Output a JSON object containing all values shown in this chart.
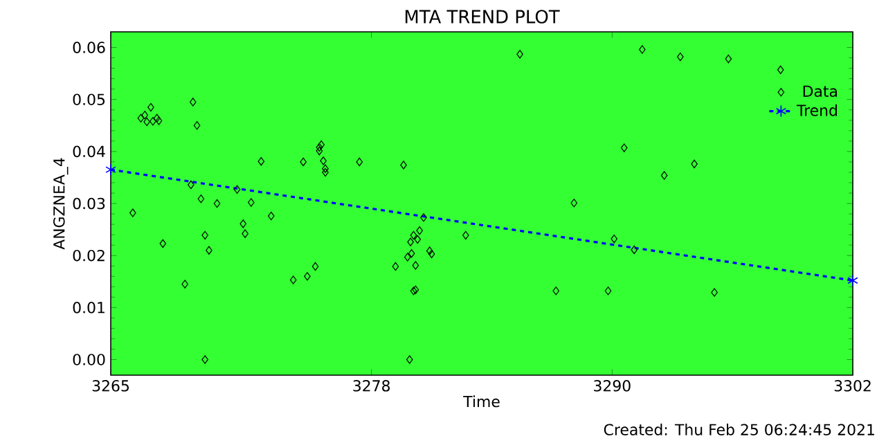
{
  "chart_data": {
    "type": "scatter",
    "title": "MTA TREND PLOT",
    "xlabel": "Time",
    "ylabel": "ANGZNEA_4",
    "annotations": [
      "Created: Thu Feb 25 06:24:45 2021"
    ],
    "xlim": [
      3265,
      3302
    ],
    "ylim": [
      -0.003,
      0.063
    ],
    "xticks": [
      3265,
      3278,
      3290,
      3302
    ],
    "yticks": [
      {
        "value": 0,
        "label": "0.00"
      },
      {
        "value": 0.01,
        "label": "0.01"
      },
      {
        "value": 0.02,
        "label": "0.02"
      },
      {
        "value": 0.03,
        "label": "0.03"
      },
      {
        "value": 0.04,
        "label": "0.04"
      },
      {
        "value": 0.05,
        "label": "0.05"
      },
      {
        "value": 0.06,
        "label": "0.06"
      }
    ],
    "grid": false,
    "legend": "top right",
    "series": [
      {
        "name": "Data",
        "color": "#000000",
        "marker": "diamond",
        "x": [
          3266.1,
          3266.5,
          3266.7,
          3267.0,
          3266.8,
          3267.1,
          3267.3,
          3267.4,
          3267.6,
          3268.7,
          3269.1,
          3269.3,
          3269.0,
          3269.5,
          3269.7,
          3269.9,
          3269.7,
          3270.3,
          3271.3,
          3271.6,
          3271.7,
          3272.0,
          3272.5,
          3273.0,
          3274.1,
          3274.6,
          3274.8,
          3275.2,
          3275.4,
          3275.5,
          3275.4,
          3275.6,
          3275.7,
          3275.7,
          3277.4,
          3279.2,
          3279.6,
          3279.9,
          3279.8,
          3280.0,
          3279.95,
          3280.1,
          3280.2,
          3280.1,
          3280.3,
          3280.4,
          3280.2,
          3280.6,
          3280.9,
          3281.0,
          3282.7,
          3285.4,
          3287.2,
          3288.1,
          3289.8,
          3290.1,
          3290.6,
          3291.1,
          3291.5,
          3292.6,
          3293.4,
          3294.1,
          3295.1,
          3295.8,
          3298.4
        ],
        "values": [
          0.0282,
          0.0464,
          0.047,
          0.0485,
          0.0457,
          0.0458,
          0.0464,
          0.0459,
          0.0223,
          0.0145,
          0.0495,
          0.045,
          0.0336,
          0.0309,
          0.0239,
          0.021,
          0.0,
          0.03,
          0.0327,
          0.0261,
          0.0242,
          0.0302,
          0.0381,
          0.0276,
          0.0153,
          0.038,
          0.016,
          0.0179,
          0.0408,
          0.0413,
          0.0401,
          0.0382,
          0.0367,
          0.036,
          0.038,
          0.0179,
          0.0374,
          0.0,
          0.0197,
          0.0204,
          0.0226,
          0.0132,
          0.0134,
          0.0239,
          0.0231,
          0.0248,
          0.0181,
          0.0273,
          0.0209,
          0.0203,
          0.0239,
          0.0587,
          0.0132,
          0.0301,
          0.0132,
          0.0232,
          0.0407,
          0.0211,
          0.0596,
          0.0354,
          0.0582,
          0.0376,
          0.0129,
          0.0578,
          0.0557
        ]
      },
      {
        "name": "Trend",
        "type": "line",
        "color": "#0000ff",
        "marker": "cross",
        "line_style": "dashed",
        "x": [
          3265,
          3302
        ],
        "values": [
          0.0365,
          0.0152
        ]
      }
    ]
  }
}
